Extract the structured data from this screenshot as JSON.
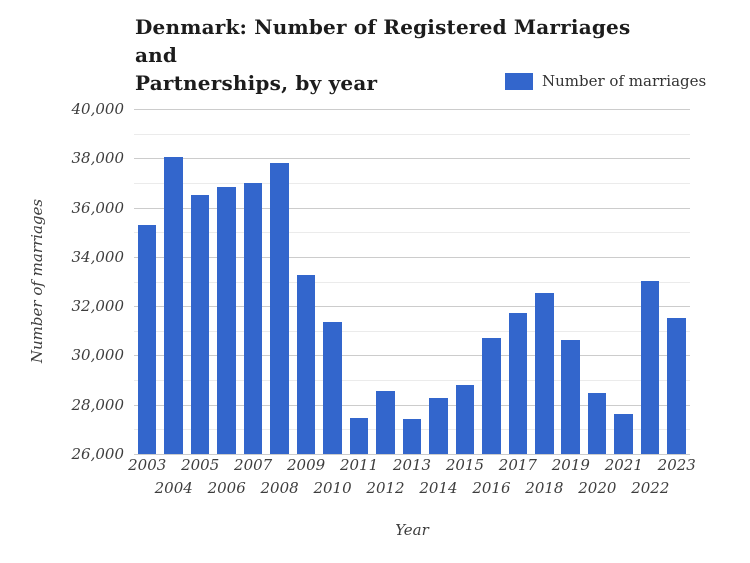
{
  "title": {
    "full": "Denmark: Number of Registered Marriages and Partnerships, by year",
    "lines": [
      "Denmark: Number of Registered Marriages and",
      "Partnerships, by year"
    ]
  },
  "legend": {
    "label": "Number of marriages"
  },
  "colors": {
    "bar": "#3366cc",
    "grid_major": "#cccccc",
    "grid_minor": "#ebebeb",
    "title_text": "#1c1c1c",
    "axis_text": "#3d3d3d"
  },
  "chart_data": {
    "type": "bar",
    "title": "Denmark: Number of Registered Marriages and Partnerships, by year",
    "xlabel": "Year",
    "ylabel": "Number of marriages",
    "legend_entries": [
      "Number of marriages"
    ],
    "legend_position": "top-right",
    "grid": true,
    "ylim": [
      26000,
      40000
    ],
    "ytick_step": 2000,
    "minor_tick_step": 1000,
    "ytick_labels": [
      "26,000",
      "28,000",
      "30,000",
      "32,000",
      "34,000",
      "36,000",
      "38,000",
      "40,000"
    ],
    "categories": [
      2003,
      2004,
      2005,
      2006,
      2007,
      2008,
      2009,
      2010,
      2011,
      2012,
      2013,
      2014,
      2015,
      2016,
      2017,
      2018,
      2019,
      2020,
      2021,
      2022,
      2023
    ],
    "values": [
      35310,
      38060,
      36500,
      36850,
      37000,
      37820,
      33270,
      31340,
      27470,
      28560,
      27440,
      28270,
      28810,
      30710,
      31730,
      32520,
      30610,
      28460,
      27610,
      33030,
      31510
    ]
  }
}
